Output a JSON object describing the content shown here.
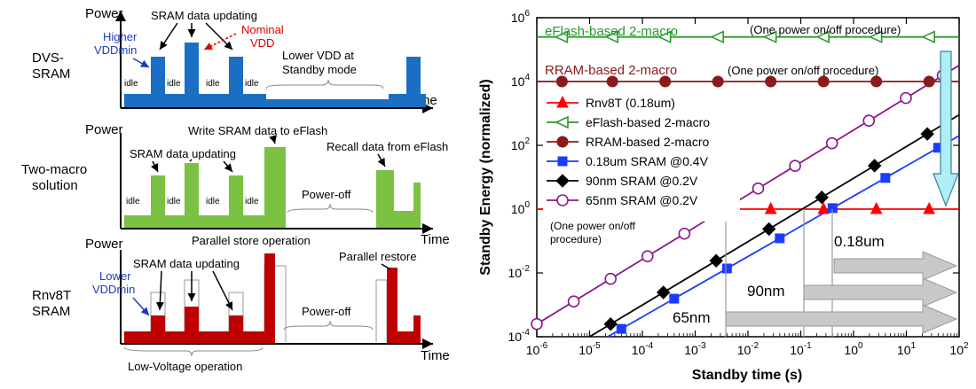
{
  "left_panels": [
    {
      "row_label": "DVS-\nSRAM",
      "ylabel": "Power",
      "xlabel": "Time",
      "color": "#1a6fc4",
      "annotations": {
        "updating": "SRAM data updating",
        "higher": "Higher\nVDDmin",
        "nominal": "Nominal\nVDD",
        "lower_vdd": "Lower VDD at\nStandby mode",
        "idle": "idle"
      }
    },
    {
      "row_label": "Two-macro\nsolution",
      "ylabel": "Power",
      "xlabel": "Time",
      "color": "#7cc242",
      "annotations": {
        "updating": "SRAM data updating",
        "write": "Write SRAM data to eFlash",
        "recall": "Recall data from eFlash",
        "poweroff": "Power-off",
        "idle": "idle"
      }
    },
    {
      "row_label": "Rnv8T\nSRAM",
      "ylabel": "Power",
      "xlabel": "Time",
      "color": "#c00000",
      "annotations": {
        "updating": "SRAM data updating",
        "parallel_store": "Parallel store operation",
        "parallel_restore": "Parallel restore",
        "poweroff": "Power-off",
        "lower": "Lower\nVDDmin",
        "lowv": "Low-Voltage operation"
      }
    }
  ],
  "chart_data": {
    "type": "line",
    "xlabel": "Standby time (s)",
    "ylabel": "Standby Energy (normalized)",
    "xscale": "log",
    "yscale": "log",
    "xlim": [
      1e-06,
      100
    ],
    "ylim": [
      0.0001,
      1000000.0
    ],
    "x_ticks": [
      {
        "value": 1e-06,
        "base": "10",
        "exp": "-6"
      },
      {
        "value": 1e-05,
        "base": "10",
        "exp": "-5"
      },
      {
        "value": 0.0001,
        "base": "10",
        "exp": "-4"
      },
      {
        "value": 0.001,
        "base": "10",
        "exp": "-3"
      },
      {
        "value": 0.01,
        "base": "10",
        "exp": "-2"
      },
      {
        "value": 0.1,
        "base": "10",
        "exp": "-1"
      },
      {
        "value": 1,
        "base": "10",
        "exp": "0"
      },
      {
        "value": 10,
        "base": "10",
        "exp": "1"
      },
      {
        "value": 100,
        "base": "10",
        "exp": "2"
      }
    ],
    "y_ticks": [
      {
        "value": 0.0001,
        "base": "10",
        "exp": "-4"
      },
      {
        "value": 0.01,
        "base": "10",
        "exp": "-2"
      },
      {
        "value": 1,
        "base": "10",
        "exp": "0"
      },
      {
        "value": 100,
        "base": "10",
        "exp": "2"
      },
      {
        "value": 10000.0,
        "base": "10",
        "exp": "4"
      },
      {
        "value": 1000000.0,
        "base": "10",
        "exp": "6"
      }
    ],
    "series": [
      {
        "name": "Rnv8T (0.18um)",
        "color": "#ff0000",
        "marker": "triangle",
        "x": [
          1e-06,
          100
        ],
        "y": [
          1,
          1
        ],
        "marker_x": [
          3e-06,
          2.7e-05,
          0.00027,
          0.0027,
          0.027,
          0.27,
          2.7,
          27
        ]
      },
      {
        "name": "eFlash-based 2-macro",
        "color": "#2a9a2a",
        "marker": "triangle-left",
        "x": [
          1e-06,
          100
        ],
        "y": [
          250000.0,
          250000.0
        ],
        "marker_x": [
          3e-06,
          2.7e-05,
          0.00027,
          0.0027,
          0.027,
          0.27,
          2.7,
          27
        ]
      },
      {
        "name": "RRAM-based 2-macro",
        "color": "#8b1a1a",
        "marker": "circle-filled",
        "x": [
          1e-06,
          100
        ],
        "y": [
          10000.0,
          10000.0
        ],
        "marker_x": [
          3e-06,
          2.7e-05,
          0.00027,
          0.0027,
          0.027,
          0.27,
          2.7,
          27
        ]
      },
      {
        "name": "0.18um SRAM @0.4V",
        "color": "#1a3cff",
        "marker": "square",
        "x": [
          2.2e-05,
          100
        ],
        "y": [
          0.0001,
          200
        ],
        "marker_x": [
          4e-05,
          0.0004,
          0.004,
          0.04,
          0.4,
          4,
          40
        ]
      },
      {
        "name": "90nm SRAM @0.2V",
        "color": "#000000",
        "marker": "diamond",
        "x": [
          1e-05,
          100
        ],
        "y": [
          0.0001,
          900
        ],
        "marker_x": [
          2.5e-05,
          0.00025,
          0.0025,
          0.025,
          0.25,
          2.5,
          25
        ]
      },
      {
        "name": "65nm SRAM @0.2V",
        "color": "#8b1a8b",
        "marker": "circle-open",
        "x": [
          1e-06,
          100
        ],
        "y": [
          0.00025,
          32000.0
        ],
        "marker_x": [
          1e-06,
          5e-06,
          2.5e-05,
          0.000125,
          0.000625,
          0.0031,
          0.0156,
          0.078,
          0.39,
          1.95,
          9.8,
          49
        ]
      }
    ],
    "text_annotations": [
      {
        "text": "eFlash-based 2-macro",
        "color": "#2a9a2a"
      },
      {
        "text": "(One power on/off procedure)",
        "color": "#000000"
      },
      {
        "text": "RRAM-based 2-macro",
        "color": "#8b1a1a"
      },
      {
        "text": "(One power on/off procedure)",
        "color": "#000000"
      },
      {
        "text": "(One power on/off\nprocedure)",
        "color": "#000000"
      },
      {
        "text": "0.18um",
        "color": "#000000"
      },
      {
        "text": "90nm",
        "color": "#000000"
      },
      {
        "text": "65nm",
        "color": "#000000"
      }
    ]
  }
}
